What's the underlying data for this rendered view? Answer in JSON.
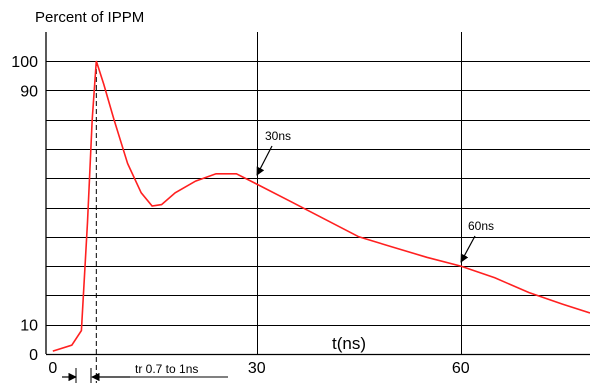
{
  "chart_data": {
    "type": "line",
    "title": "Percent of IPPM",
    "xlabel": "t(ns)",
    "ylabel": "",
    "xlim": [
      -1,
      79
    ],
    "ylim": [
      0,
      100
    ],
    "x_ticks": [
      {
        "value": 0,
        "label": "0"
      },
      {
        "value": 30,
        "label": "30"
      },
      {
        "value": 60,
        "label": "60"
      }
    ],
    "y_ticks": [
      {
        "value": 0,
        "label": "0"
      },
      {
        "value": 10,
        "label": "10"
      },
      {
        "value": 90,
        "label": "90"
      },
      {
        "value": 100,
        "label": "100"
      }
    ],
    "y_gridlines": [
      0,
      10,
      20,
      30,
      40,
      50,
      60,
      70,
      80,
      90,
      100
    ],
    "x_gridlines": [
      30,
      60
    ],
    "series": [
      {
        "color": "#ff2020",
        "points": [
          [
            0,
            1
          ],
          [
            2.8,
            3
          ],
          [
            4.2,
            8
          ],
          [
            5.1,
            45
          ],
          [
            5.8,
            80
          ],
          [
            6.4,
            100
          ],
          [
            7.5,
            92
          ],
          [
            9,
            80
          ],
          [
            11,
            65
          ],
          [
            13,
            55
          ],
          [
            14.6,
            50.5
          ],
          [
            16,
            51
          ],
          [
            18,
            55
          ],
          [
            21,
            59
          ],
          [
            24,
            61.5
          ],
          [
            27,
            61.5
          ],
          [
            30,
            58
          ],
          [
            35,
            52
          ],
          [
            40,
            46
          ],
          [
            45,
            40
          ],
          [
            50,
            36.5
          ],
          [
            55,
            33
          ],
          [
            60,
            30
          ],
          [
            65,
            26
          ],
          [
            70,
            21
          ],
          [
            75,
            17
          ],
          [
            79,
            14
          ]
        ]
      }
    ],
    "annotations": [
      {
        "text": "30ns",
        "x": 30,
        "y": 58
      },
      {
        "text": "60ns",
        "x": 60,
        "y": 30
      },
      {
        "text": "tr 0.7 to 1ns",
        "x": 5.8,
        "y": 0
      }
    ],
    "rise_time_marker_x": 6.4,
    "grid": true
  }
}
